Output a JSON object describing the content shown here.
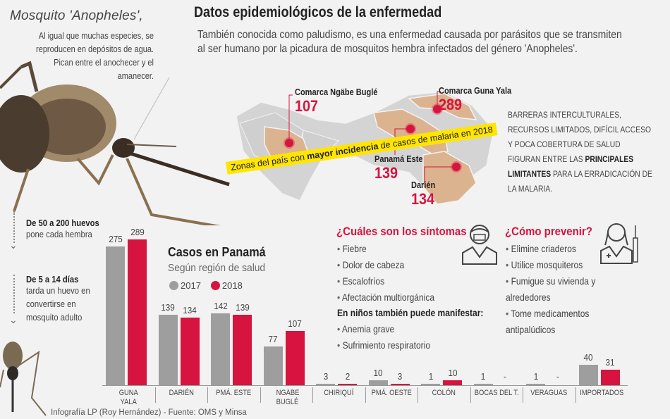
{
  "mosquito": {
    "title": "Mosquito 'Anopheles',",
    "description": "Al igual que muchas especies, se reproducen en depósitos de agua. Pican entre el anochecer y el amanecer.",
    "facts": [
      {
        "head": "De 50 a 200 huevos",
        "sub": "pone cada hembra"
      },
      {
        "head": "De 5 a 14 días",
        "sub": "tarda un huevo en convertirse en mosquito adulto"
      }
    ]
  },
  "header": {
    "title": "Datos epidemiológicos de la enfermedad",
    "description": "También conocida como paludismo, es una enfermedad causada por parásitos que se transmiten al ser humano por la picadura de mosquitos hembra infectados del género 'Anopheles'."
  },
  "map": {
    "banner_pre": "Zonas del país con ",
    "banner_bold": "mayor incidencia",
    "banner_post": " de casos de malaria en 2018",
    "callouts": [
      {
        "label": "Comarca Ngäbe Buglé",
        "value": "107"
      },
      {
        "label": "Comarca Guna Yala",
        "value": "289"
      },
      {
        "label": "Panamá Este",
        "value": "139"
      },
      {
        "label": "Darién",
        "value": "134"
      }
    ],
    "colors": {
      "highlight": "#dcb38f",
      "land": "#d4d4d4",
      "pin": "#d6143f"
    }
  },
  "barriers": {
    "pre": "Barreras interculturales, recursos limitados, difícil acceso y poca cobertura de salud figuran entre las ",
    "bold": "principales limitantes",
    "post": " para la erradicación de la malaria."
  },
  "symptoms": {
    "title": "¿Cuáles son los síntomas",
    "items": [
      "Fiebre",
      "Dolor de cabeza",
      "Escalofríos",
      "Afectación multiorgánica"
    ],
    "children_head": "En niños también puede manifestar:",
    "children_items": [
      "Anemia grave",
      "Sufrimiento respiratorio"
    ]
  },
  "prevention": {
    "title": "¿Cómo prevenir?",
    "items": [
      "Elimine criaderos",
      "Utilice mosquiteros",
      "Fumigue su vivienda y alrededores",
      "Tome medicamentos antipalúdicos"
    ]
  },
  "chart_data": {
    "type": "bar",
    "title": "Casos en Panamá",
    "subtitle": "Según región de salud",
    "categories": [
      "GUNA YALA",
      "DARIÉN",
      "PMÁ. ESTE",
      "NGÄBE BUGLÉ",
      "CHIRIQUÍ",
      "PMÁ. OESTE",
      "COLÓN",
      "BOCAS DEL T.",
      "VERAGUAS",
      "IMPORTADOS"
    ],
    "series": [
      {
        "name": "2017",
        "color": "#9e9e9e",
        "values": [
          275,
          139,
          142,
          77,
          3,
          10,
          1,
          1,
          1,
          40
        ],
        "labels": [
          "275",
          "139",
          "142",
          "77",
          "3",
          "10",
          "1",
          "1",
          "1",
          "40"
        ]
      },
      {
        "name": "2018",
        "color": "#d6143f",
        "values": [
          289,
          134,
          139,
          107,
          2,
          3,
          10,
          0,
          0,
          31
        ],
        "labels": [
          "289",
          "134",
          "139",
          "107",
          "2",
          "3",
          "10",
          "-",
          "-",
          "31"
        ]
      }
    ],
    "legend_position": "top-left",
    "grid": false,
    "ylim": [
      0,
      300
    ]
  },
  "credit": "Infografía LP (Roy Hernández) - Fuente: OMS y Minsa"
}
